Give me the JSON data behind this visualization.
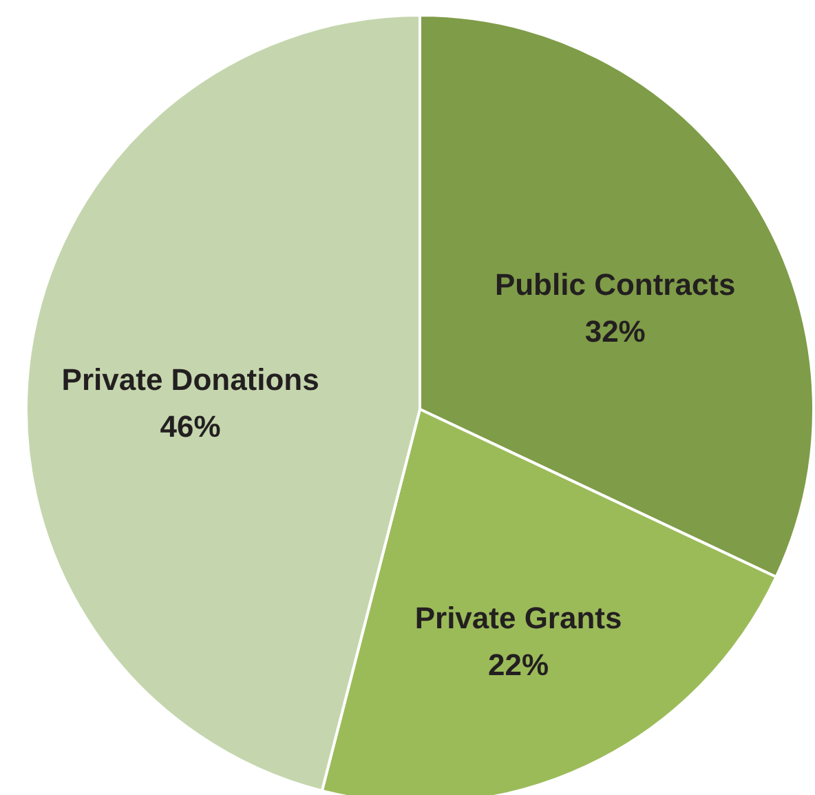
{
  "chart_data": {
    "type": "pie",
    "categories": [
      "Public Contracts",
      "Private Grants",
      "Private Donations"
    ],
    "values": [
      32,
      22,
      46
    ],
    "colors": [
      "#7f9c48",
      "#9bbb59",
      "#c5d6ae"
    ],
    "value_labels": [
      "32%",
      "22%",
      "46%"
    ],
    "legend": false
  }
}
